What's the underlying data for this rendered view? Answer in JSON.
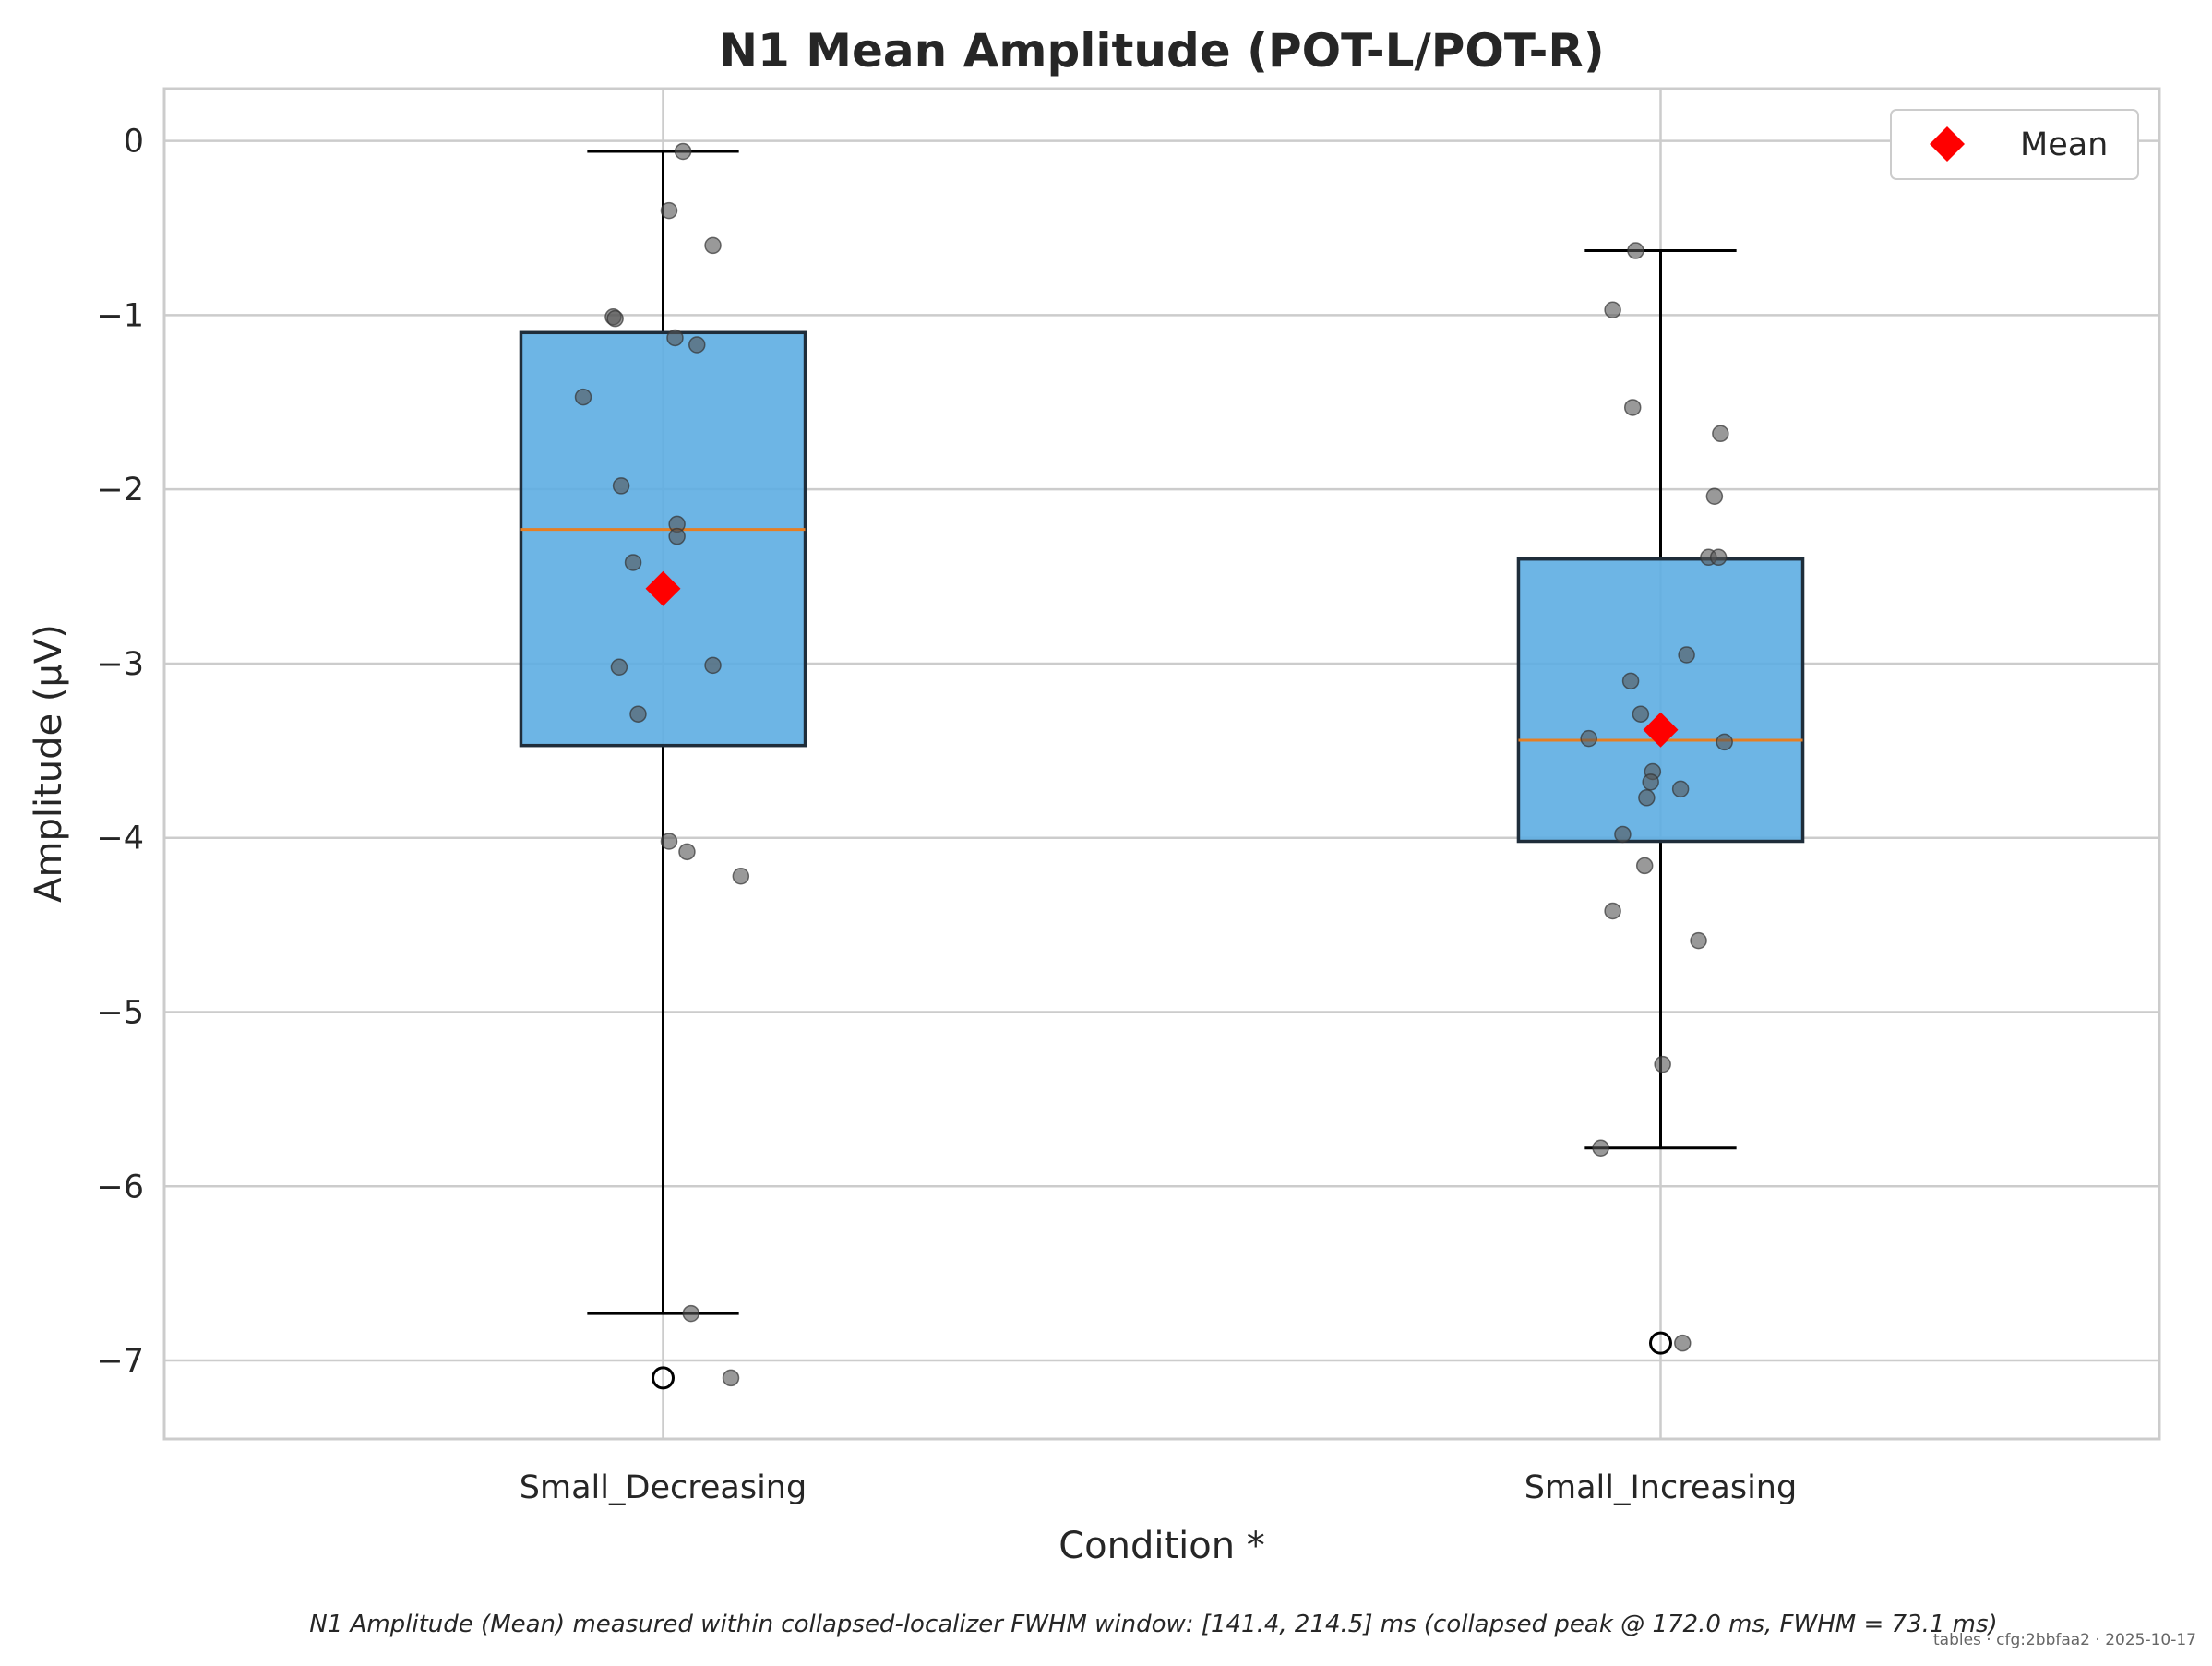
{
  "chart_data": {
    "type": "box",
    "title": "N1 Mean Amplitude (POT-L/POT-R)",
    "xlabel": "Condition *",
    "ylabel": "Amplitude (µV)",
    "ylim": [
      -7.45,
      0.3
    ],
    "yticks": [
      0,
      -1,
      -2,
      -3,
      -4,
      -5,
      -6,
      -7
    ],
    "ytick_labels": [
      "0",
      "−1",
      "−2",
      "−3",
      "−4",
      "−5",
      "−6",
      "−7"
    ],
    "grid": true,
    "legend": {
      "position": "top-right",
      "entries": [
        {
          "label": "Mean",
          "marker": "diamond",
          "color": "#ff0000"
        }
      ]
    },
    "categories": [
      "Small_Decreasing",
      "Small_Increasing"
    ],
    "boxes": [
      {
        "category": "Small_Decreasing",
        "whisker_low": -6.73,
        "q1": -3.47,
        "median": -2.23,
        "q3": -1.1,
        "whisker_high": -0.06,
        "mean": -2.57,
        "outliers": [
          -7.1
        ],
        "points": [
          {
            "jitter": 0.02,
            "y": -0.06
          },
          {
            "jitter": 0.006,
            "y": -0.4
          },
          {
            "jitter": 0.05,
            "y": -0.6
          },
          {
            "jitter": -0.05,
            "y": -1.01
          },
          {
            "jitter": -0.048,
            "y": -1.02
          },
          {
            "jitter": 0.012,
            "y": -1.13
          },
          {
            "jitter": 0.034,
            "y": -1.17
          },
          {
            "jitter": -0.08,
            "y": -1.47
          },
          {
            "jitter": -0.042,
            "y": -1.98
          },
          {
            "jitter": 0.014,
            "y": -2.2
          },
          {
            "jitter": 0.014,
            "y": -2.27
          },
          {
            "jitter": -0.03,
            "y": -2.42
          },
          {
            "jitter": -0.044,
            "y": -3.02
          },
          {
            "jitter": 0.05,
            "y": -3.01
          },
          {
            "jitter": -0.025,
            "y": -3.29
          },
          {
            "jitter": 0.006,
            "y": -4.02
          },
          {
            "jitter": 0.024,
            "y": -4.08
          },
          {
            "jitter": 0.078,
            "y": -4.22
          },
          {
            "jitter": 0.028,
            "y": -6.73
          },
          {
            "jitter": 0.068,
            "y": -7.1
          }
        ]
      },
      {
        "category": "Small_Increasing",
        "whisker_low": -5.78,
        "q1": -4.02,
        "median": -3.44,
        "q3": -2.4,
        "whisker_high": -0.63,
        "mean": -3.38,
        "outliers": [
          -6.9
        ],
        "points": [
          {
            "jitter": -0.025,
            "y": -0.63
          },
          {
            "jitter": -0.048,
            "y": -0.97
          },
          {
            "jitter": -0.028,
            "y": -1.53
          },
          {
            "jitter": 0.06,
            "y": -1.68
          },
          {
            "jitter": 0.054,
            "y": -2.04
          },
          {
            "jitter": 0.048,
            "y": -2.39
          },
          {
            "jitter": 0.058,
            "y": -2.39
          },
          {
            "jitter": 0.026,
            "y": -2.95
          },
          {
            "jitter": -0.03,
            "y": -3.1
          },
          {
            "jitter": -0.02,
            "y": -3.29
          },
          {
            "jitter": -0.072,
            "y": -3.43
          },
          {
            "jitter": 0.064,
            "y": -3.45
          },
          {
            "jitter": -0.008,
            "y": -3.62
          },
          {
            "jitter": -0.01,
            "y": -3.68
          },
          {
            "jitter": 0.02,
            "y": -3.72
          },
          {
            "jitter": -0.014,
            "y": -3.77
          },
          {
            "jitter": -0.038,
            "y": -3.98
          },
          {
            "jitter": -0.016,
            "y": -4.16
          },
          {
            "jitter": -0.048,
            "y": -4.42
          },
          {
            "jitter": 0.038,
            "y": -4.59
          },
          {
            "jitter": 0.002,
            "y": -5.3
          },
          {
            "jitter": -0.06,
            "y": -5.78
          },
          {
            "jitter": 0.022,
            "y": -6.9
          }
        ]
      }
    ],
    "colors": {
      "box_fill": "#5dade2",
      "box_edge": "#1f2d3a",
      "median": "#e67e22",
      "mean": "#ff0000",
      "points": "#555555",
      "grid": "#cccccc",
      "frame": "#cccccc"
    },
    "caption": "N1 Amplitude (Mean) measured within collapsed-localizer FWHM window: [141.4, 214.5] ms (collapsed peak @ 172.0 ms, FWHM = 73.1 ms)",
    "stamp": "tables · cfg:2bbfaa2 · 2025-10-17"
  }
}
